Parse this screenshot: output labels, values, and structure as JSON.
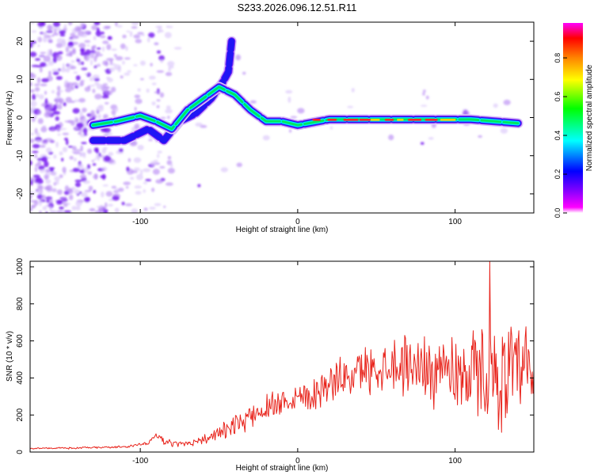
{
  "title": "S233.2026.096.12.51.R11",
  "chart_data": [
    {
      "type": "heatmap",
      "xlabel": "Height of straight line (km)",
      "ylabel": "Frequency (Hz)",
      "xlim": [
        -170,
        150
      ],
      "ylim": [
        -25,
        25
      ],
      "xticks": [
        -100,
        0,
        100
      ],
      "yticks": [
        -20,
        -10,
        0,
        10,
        20
      ],
      "colorbar": {
        "label": "Normalized spectral amplitude",
        "range": [
          0,
          0.98
        ],
        "ticks": [
          0.0,
          0.2,
          0.4,
          0.6,
          0.8
        ],
        "tick_labels": [
          "0.0",
          "0.2",
          "0.4",
          "0.6",
          "0.8"
        ],
        "colors": [
          "#ffffff",
          "#ff00ff",
          "#8000ff",
          "#0000ff",
          "#00ffff",
          "#00ff00",
          "#ffff00",
          "#ff8000",
          "#ff0000",
          "#ff00ff"
        ]
      },
      "ridge": {
        "points": [
          [
            -130,
            -2
          ],
          [
            -115,
            -1
          ],
          [
            -100,
            0.5
          ],
          [
            -90,
            -1
          ],
          [
            -80,
            -3
          ],
          [
            -70,
            2
          ],
          [
            -60,
            5
          ],
          [
            -50,
            8
          ],
          [
            -40,
            6
          ],
          [
            -30,
            2
          ],
          [
            -20,
            -1
          ],
          [
            -10,
            -1
          ],
          [
            0,
            -2
          ],
          [
            20,
            -0.5
          ],
          [
            50,
            -0.5
          ],
          [
            90,
            -0.5
          ],
          [
            110,
            -0.5
          ],
          [
            140,
            -1.5
          ]
        ],
        "branch": [
          [
            -130,
            -6
          ],
          [
            -110,
            -6
          ],
          [
            -95,
            -3
          ],
          [
            -85,
            -6
          ],
          [
            -75,
            -1
          ],
          [
            -65,
            1
          ],
          [
            -55,
            5
          ],
          [
            -48,
            9
          ],
          [
            -44,
            12
          ],
          [
            -42,
            20
          ]
        ],
        "peak_region_km": [
          10,
          95
        ]
      }
    },
    {
      "type": "line",
      "xlabel": "Height of straight line (km)",
      "ylabel": "SNR (10 * v/v)",
      "xlim": [
        -170,
        150
      ],
      "ylim": [
        0,
        1030
      ],
      "xticks": [
        -100,
        0,
        100
      ],
      "yticks": [
        0,
        200,
        400,
        600,
        800,
        1000
      ],
      "series": [
        {
          "name": "SNR",
          "color": "#e8241c",
          "trend": {
            "x": [
              -170,
              -140,
              -110,
              -95,
              -90,
              -85,
              -75,
              -55,
              -40,
              -25,
              -10,
              10,
              25,
              45,
              60,
              80,
              100,
              120,
              150
            ],
            "y": [
              20,
              22,
              28,
              45,
              100,
              55,
              40,
              80,
              140,
              220,
              280,
              320,
              390,
              450,
              480,
              460,
              440,
              420,
              400
            ]
          },
          "noise_amplitude": {
            "x": [
              -170,
              -110,
              -60,
              -30,
              0,
              30,
              60,
              100,
              120,
              150
            ],
            "y": [
              4,
              6,
              25,
              70,
              90,
              110,
              150,
              220,
              260,
              300
            ]
          },
          "peak": {
            "x": 122,
            "y": 1030
          }
        }
      ]
    }
  ]
}
